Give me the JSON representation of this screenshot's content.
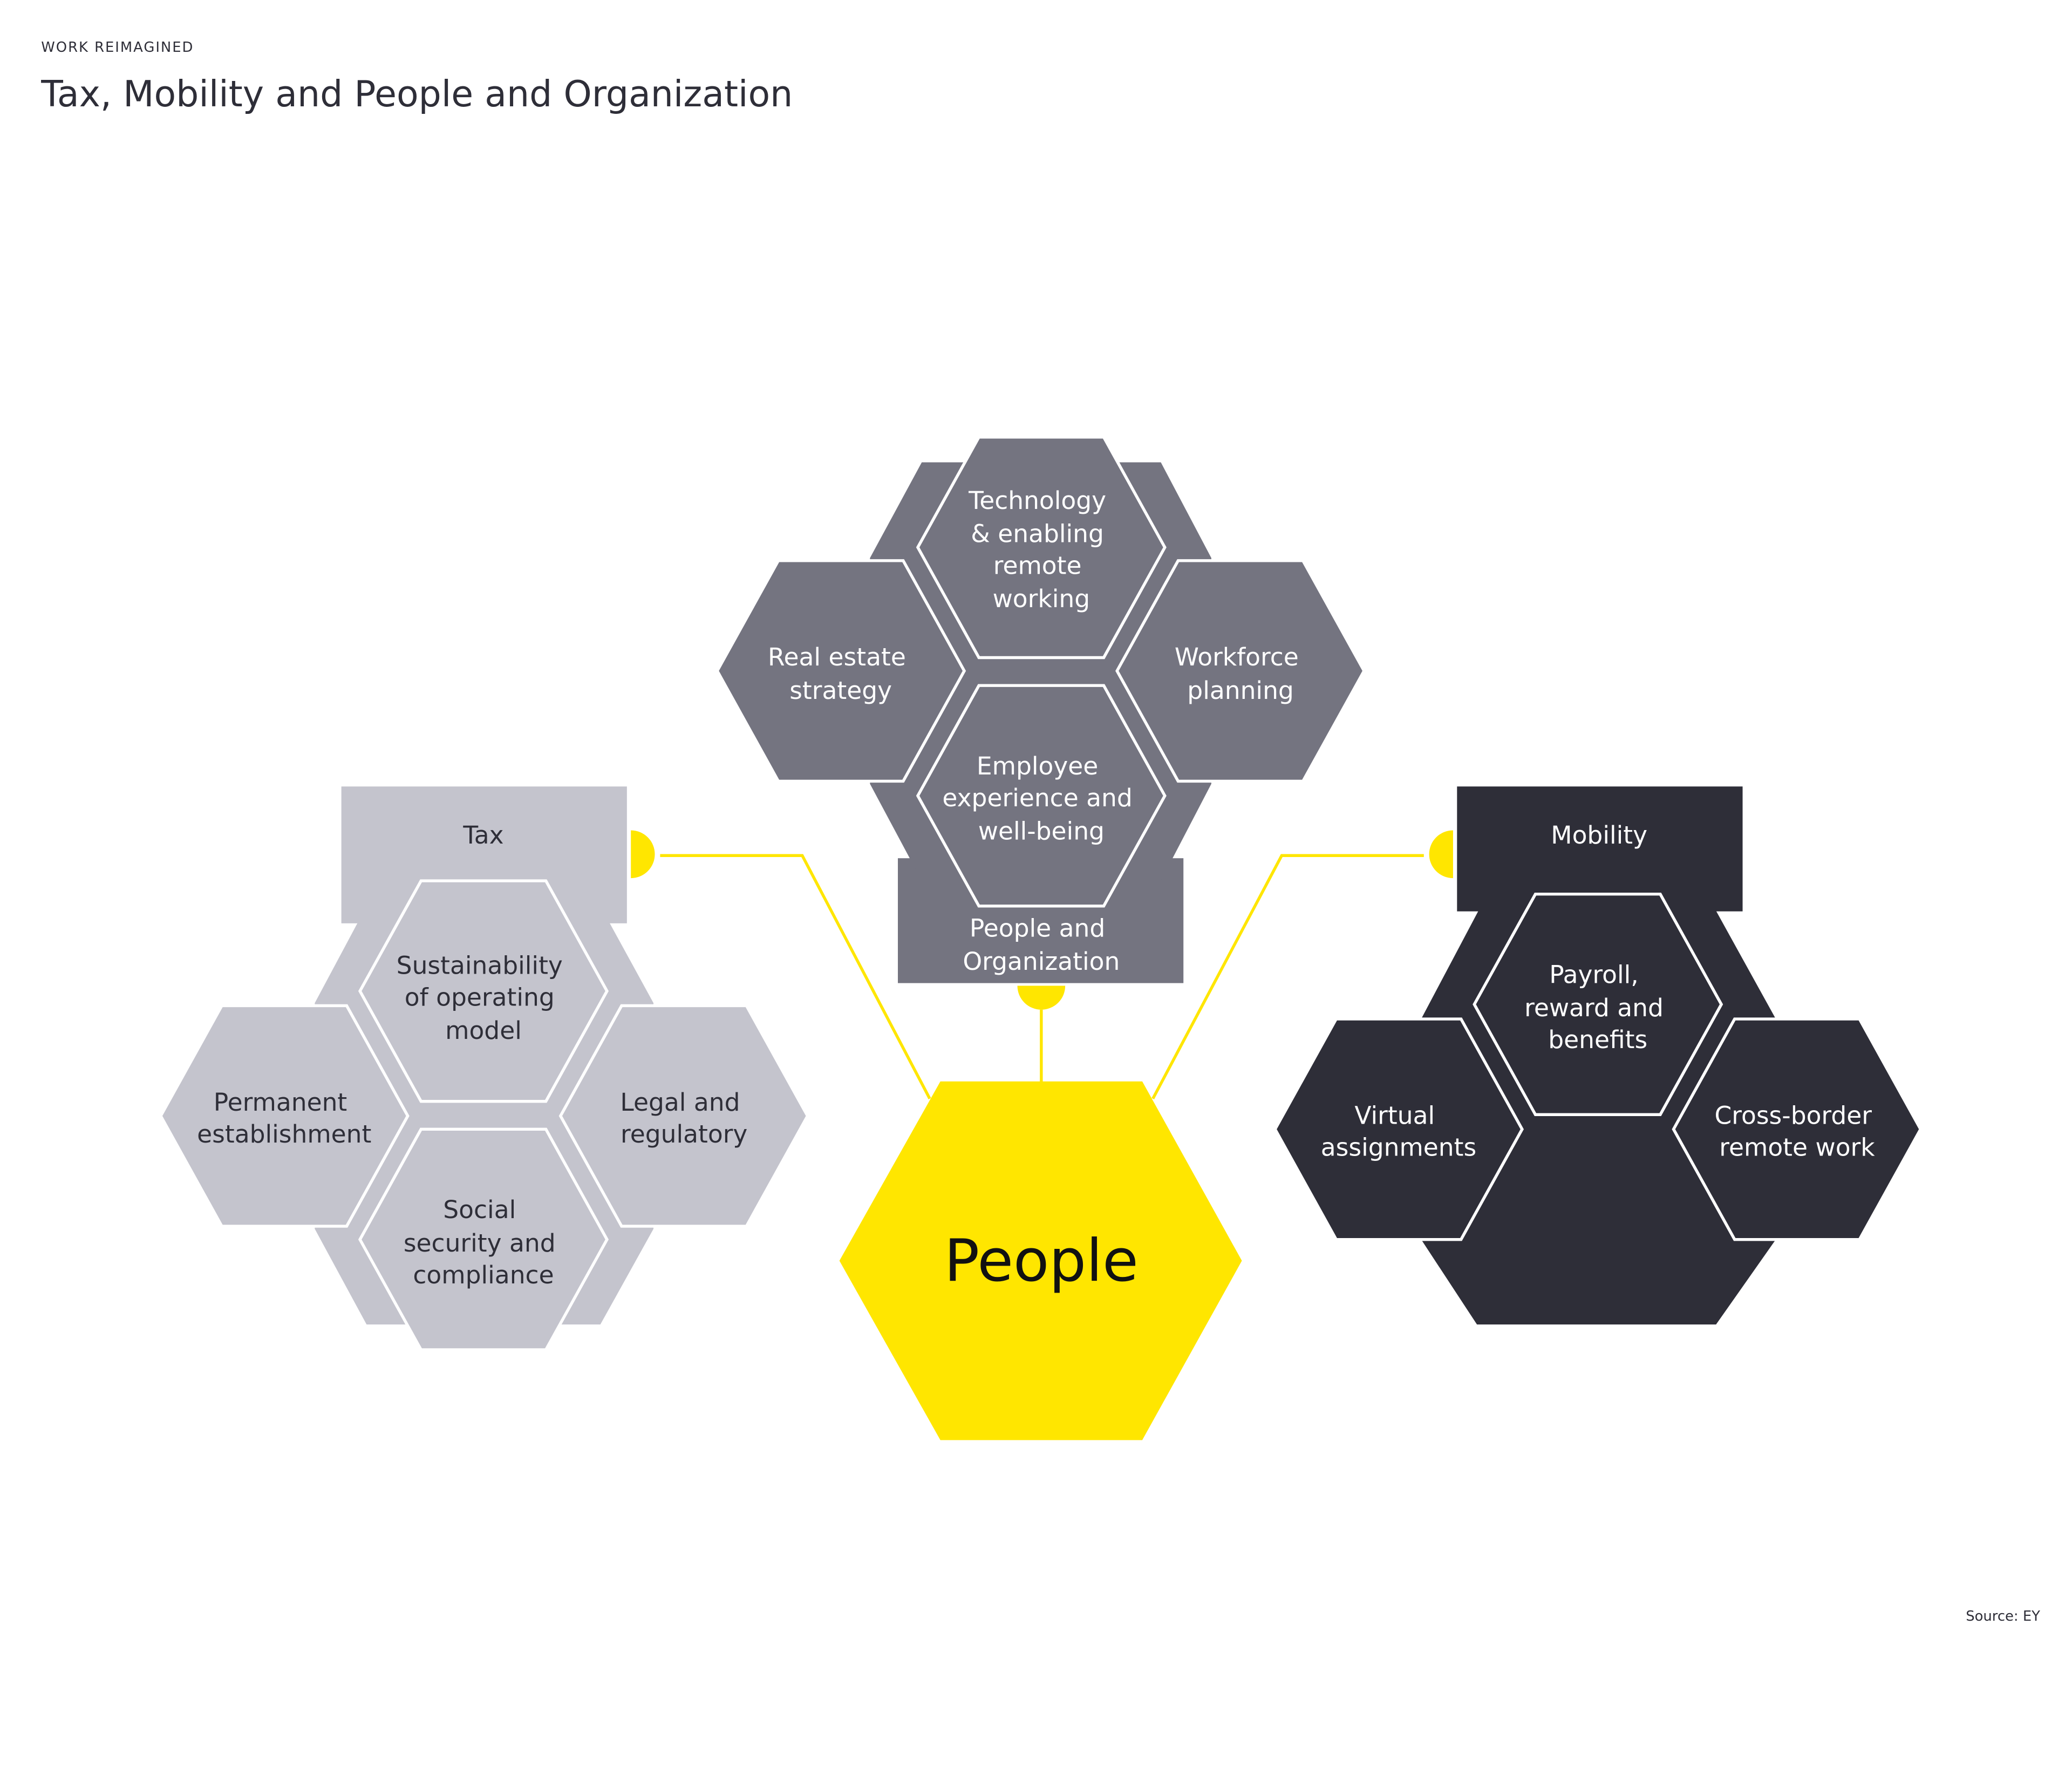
{
  "header": {
    "kicker": "WORK REIMAGINED",
    "title": "Tax, Mobility and People and Organization"
  },
  "source": "Source: EY",
  "colors": {
    "people_and_organization": "#747480",
    "tax": "#C4C4CD",
    "mobility": "#2E2E38",
    "people": "#FFE600",
    "text_dark": "#2E2E38"
  },
  "people": {
    "label": "People"
  },
  "people_and_organization": {
    "label": [
      "People and",
      "Organization"
    ],
    "items": {
      "technology": [
        "Technology",
        "& enabling",
        "remote",
        "working"
      ],
      "real_estate": [
        "Real estate",
        "strategy"
      ],
      "workforce": [
        "Workforce",
        "planning"
      ],
      "employee": [
        "Employee",
        "experience and",
        "well-being"
      ]
    }
  },
  "tax": {
    "label": "Tax",
    "items": {
      "sustainability": [
        "Sustainability",
        "of operating",
        "model"
      ],
      "permanent": [
        "Permanent",
        "establishment"
      ],
      "legal": [
        "Legal and",
        "regulatory"
      ],
      "social": [
        "Social",
        "security and",
        "compliance"
      ]
    }
  },
  "mobility": {
    "label": "Mobility",
    "items": {
      "payroll": [
        "Payroll,",
        "reward and",
        "benefits"
      ],
      "virtual": [
        "Virtual",
        "assignments"
      ],
      "cross_border": [
        "Cross-border",
        "remote work"
      ]
    }
  }
}
